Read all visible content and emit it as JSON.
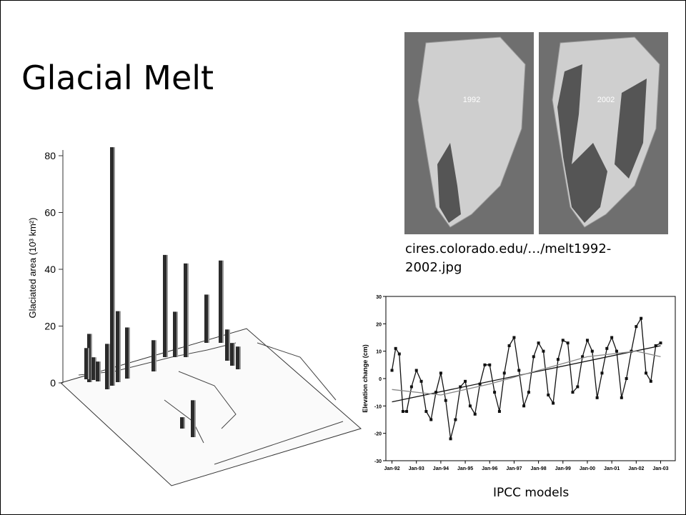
{
  "title": "Glacial Melt",
  "images": [
    {
      "label": "1992"
    },
    {
      "label": "2002"
    }
  ],
  "image_caption": "cires.colorado.edu/…/melt1992-2002.jpg",
  "chart_caption": "IPCC models",
  "chart_data": [
    {
      "type": "bar",
      "y_label": "Glaciated area (10³ km²)",
      "color": "#2b2b2b",
      "ylim": [
        0,
        80
      ],
      "yticks": [
        0,
        20,
        40,
        60,
        80
      ],
      "values": [
        17,
        11,
        8,
        7,
        16,
        84,
        25,
        18,
        11,
        36,
        16,
        33,
        17,
        29,
        11,
        8,
        8,
        4,
        13
      ]
    },
    {
      "type": "line",
      "y_label": "Elevation change (cm)",
      "ylim": [
        -30,
        30
      ],
      "yticks": [
        -30,
        -20,
        -10,
        0,
        10,
        20,
        30
      ],
      "xlim": [
        1991.75,
        2003.6
      ],
      "xticks": [
        {
          "value": 1992,
          "label": "Jan-92"
        },
        {
          "value": 1993,
          "label": "Jan-93"
        },
        {
          "value": 1994,
          "label": "Jan-94"
        },
        {
          "value": 1995,
          "label": "Jan-95"
        },
        {
          "value": 1996,
          "label": "Jan-96"
        },
        {
          "value": 1997,
          "label": "Jan-97"
        },
        {
          "value": 1998,
          "label": "Jan-98"
        },
        {
          "value": 1999,
          "label": "Jan-99"
        },
        {
          "value": 2000,
          "label": "Jan-00"
        },
        {
          "value": 2001,
          "label": "Jan-01"
        },
        {
          "value": 2002,
          "label": "Jan-02"
        },
        {
          "value": 2003,
          "label": "Jan-03"
        }
      ],
      "series": [
        {
          "color": "#111111",
          "markers": true,
          "x": [
            1992.0,
            1992.15,
            1992.3,
            1992.45,
            1992.6,
            1992.8,
            1993.0,
            1993.2,
            1993.4,
            1993.6,
            1993.8,
            1994.0,
            1994.2,
            1994.4,
            1994.6,
            1994.8,
            1995.0,
            1995.2,
            1995.4,
            1995.6,
            1995.8,
            1996.0,
            1996.2,
            1996.4,
            1996.6,
            1996.8,
            1997.0,
            1997.2,
            1997.4,
            1997.6,
            1997.8,
            1998.0,
            1998.2,
            1998.4,
            1998.6,
            1998.8,
            1999.0,
            1999.2,
            1999.4,
            1999.6,
            1999.8,
            2000.0,
            2000.2,
            2000.4,
            2000.6,
            2000.8,
            2001.0,
            2001.2,
            2001.4,
            2001.6,
            2001.8,
            2002.0,
            2002.2,
            2002.4,
            2002.6,
            2002.8,
            2003.0
          ],
          "values": [
            3,
            11,
            9,
            -12,
            -12,
            -3,
            3,
            -1,
            -12,
            -15,
            -5,
            2,
            -8,
            -22,
            -15,
            -3,
            -1,
            -10,
            -13,
            -2,
            5,
            5,
            -5,
            -12,
            2,
            12,
            15,
            3,
            -10,
            -5,
            8,
            13,
            10,
            -6,
            -9,
            7,
            14,
            13,
            -5,
            -3,
            8,
            14,
            10,
            -7,
            2,
            11,
            15,
            10,
            -7,
            0,
            10,
            19,
            22,
            2,
            -1,
            12,
            13
          ]
        },
        {
          "color": "#111111",
          "markers": false,
          "x": [
            1992,
            2003
          ],
          "values": [
            -8.5,
            12
          ]
        },
        {
          "color": "#888888",
          "markers": false,
          "x": [
            1992,
            1994,
            1996,
            1998,
            2000,
            2002,
            2003
          ],
          "values": [
            -4,
            -6,
            -2,
            3,
            8,
            10,
            8
          ]
        }
      ]
    }
  ]
}
